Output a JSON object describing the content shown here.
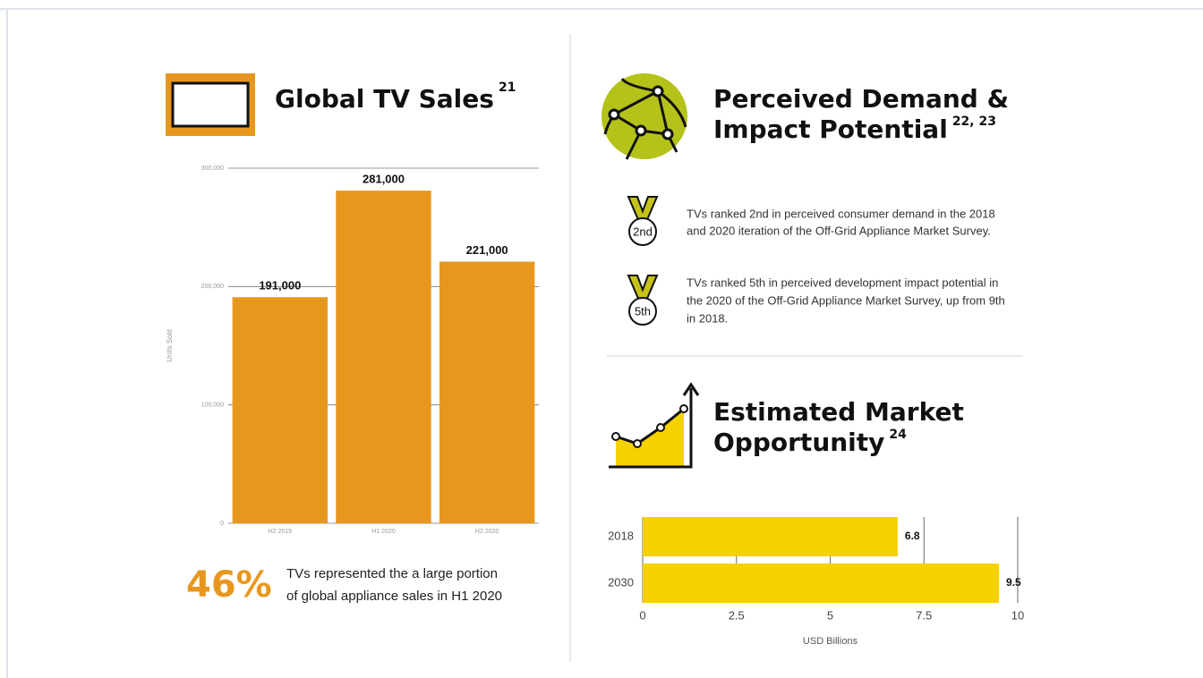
{
  "left": {
    "title": "Global TV Sales",
    "title_ref": "21",
    "stat": "46%",
    "stat_text": [
      "TVs represented the a large portion",
      "of global appliance sales in H1 2020"
    ]
  },
  "demand": {
    "title": [
      "Perceived Demand &",
      "Impact Potential"
    ],
    "title_ref": "22, 23",
    "items": [
      {
        "badge": "2nd",
        "text": [
          "TVs ranked 2nd in perceived consumer demand in the 2018",
          "and 2020 iteration of the Off-Grid Appliance Market Survey."
        ]
      },
      {
        "badge": "5th",
        "text": [
          "TVs ranked 5th in perceived development impact potential in",
          "the 2020 of the Off-Grid Appliance Market Survey, up from 9th",
          "in 2018."
        ]
      }
    ]
  },
  "market": {
    "title": [
      "Estimated Market",
      "Opportunity"
    ],
    "title_ref": "24"
  },
  "chart_data": [
    {
      "type": "bar",
      "categories": [
        "H2 2019",
        "H1 2020",
        "H2 2020"
      ],
      "values": [
        191000,
        281000,
        221000
      ],
      "value_labels": [
        "191,000",
        "281,000",
        "221,000"
      ],
      "color": "#e8971e",
      "y_label": "Units Sold",
      "ylim": [
        0,
        300000
      ],
      "yticks": [
        0,
        {
          "value": 100000,
          "label": "100,000"
        },
        {
          "value": 200000,
          "label": "200,000"
        },
        {
          "value": 300000,
          "label": "300,000"
        }
      ],
      "grid": true
    },
    {
      "type": "hbar",
      "categories": [
        "2018",
        "2030"
      ],
      "values": [
        6.8,
        9.5
      ],
      "color": "#f5d100",
      "x_label": "USD Billions",
      "xlim": [
        0,
        10
      ],
      "xticks": [
        0,
        2.5,
        5,
        7.5,
        10
      ],
      "grid": true
    }
  ]
}
